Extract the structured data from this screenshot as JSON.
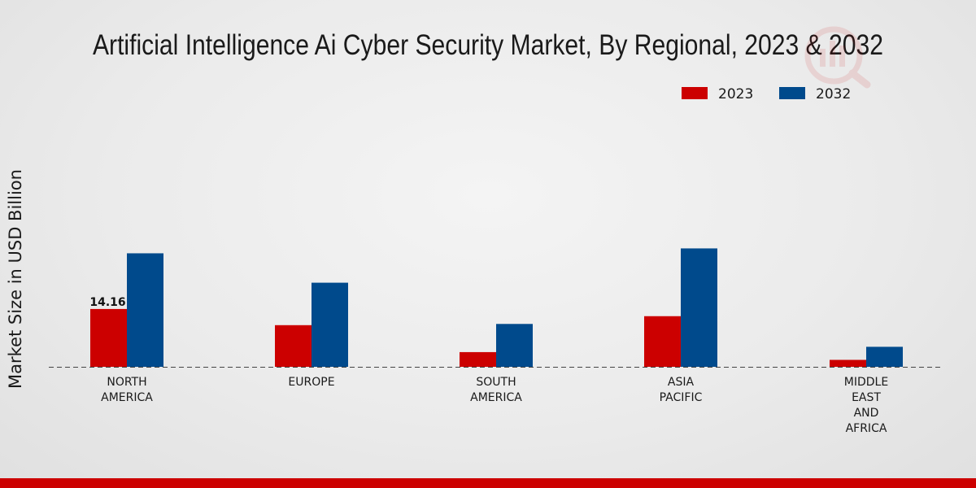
{
  "chart_data": {
    "type": "bar",
    "title": "Artificial Intelligence Ai Cyber Security Market, By Regional, 2023 & 2032",
    "xlabel": "",
    "ylabel": "Market Size in USD Billion",
    "ylim": [
      0,
      50
    ],
    "categories": [
      "NORTH\nAMERICA",
      "EUROPE",
      "SOUTH\nAMERICA",
      "ASIA\nPACIFIC",
      "MIDDLE\nEAST\nAND\nAFRICA"
    ],
    "series": [
      {
        "name": "2023",
        "color": "#cc0000",
        "values": [
          14.16,
          10.2,
          3.6,
          12.4,
          1.7
        ]
      },
      {
        "name": "2032",
        "color": "#004a8c",
        "values": [
          27.8,
          20.6,
          10.5,
          29.0,
          4.9
        ]
      }
    ],
    "data_labels": [
      {
        "series": 0,
        "index": 0,
        "text": "14.16"
      }
    ],
    "legend_position": "top-right",
    "grid": false
  },
  "footer_color": "#cc0000"
}
